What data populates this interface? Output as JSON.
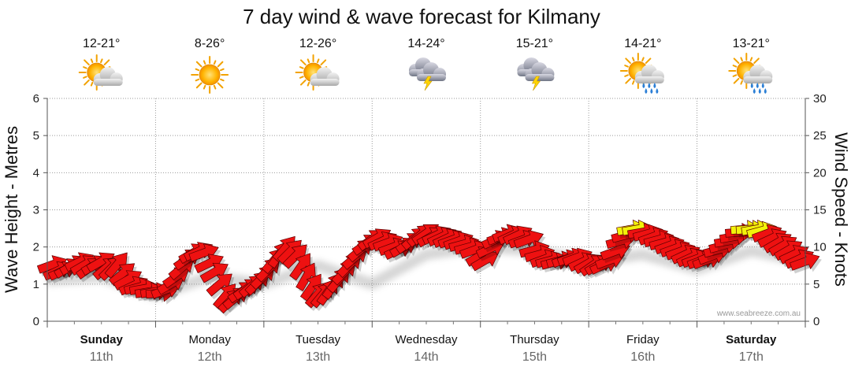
{
  "chart_data": {
    "type": "line",
    "title": "7 day wind & wave forecast for Kilmany",
    "ylabel_left": "Wave Height - Metres",
    "ylabel_right": "Wind Speed - Knots",
    "ylim_left": [
      0,
      6
    ],
    "ylim_right": [
      0,
      30
    ],
    "yticks_left": [
      "0",
      "1",
      "2",
      "3",
      "4",
      "5",
      "6"
    ],
    "yticks_right": [
      "0",
      "5",
      "10",
      "15",
      "20",
      "25",
      "30"
    ],
    "credit": "www.seabreeze.com.au",
    "days": [
      {
        "name": "Sunday",
        "date": "11th",
        "temp": "12-21°",
        "icon": "partly-cloudy-icon",
        "weekend": true
      },
      {
        "name": "Monday",
        "date": "12th",
        "temp": "8-26°",
        "icon": "sunny-icon",
        "weekend": false
      },
      {
        "name": "Tuesday",
        "date": "13th",
        "temp": "12-26°",
        "icon": "partly-cloudy-icon",
        "weekend": false
      },
      {
        "name": "Wednesday",
        "date": "14th",
        "temp": "14-24°",
        "icon": "thunderstorm-icon",
        "weekend": false
      },
      {
        "name": "Thursday",
        "date": "15th",
        "temp": "15-21°",
        "icon": "thunderstorm-icon",
        "weekend": false
      },
      {
        "name": "Friday",
        "date": "16th",
        "temp": "14-21°",
        "icon": "sun-showers-icon",
        "weekend": false
      },
      {
        "name": "Saturday",
        "date": "17th",
        "temp": "13-21°",
        "icon": "sun-showers-icon",
        "weekend": true
      }
    ],
    "wind_series": {
      "name": "Wind speed (knots, arrows show direction)",
      "days_x": [
        0.0,
        0.05,
        0.1,
        0.15,
        0.2,
        0.25,
        0.3,
        0.35,
        0.4,
        0.45,
        0.5,
        0.55,
        0.6,
        0.65,
        0.7,
        0.75,
        0.8,
        0.85,
        0.9,
        0.95,
        1.0,
        1.05,
        1.1,
        1.15,
        1.2,
        1.25,
        1.3,
        1.35,
        1.4,
        1.45,
        1.5,
        1.55,
        1.6,
        1.65,
        1.7,
        1.75,
        1.8,
        1.85,
        1.9,
        1.95,
        2.0,
        2.05,
        2.1,
        2.15,
        2.2,
        2.25,
        2.3,
        2.35,
        2.4,
        2.45,
        2.5,
        2.55,
        2.6,
        2.65,
        2.7,
        2.75,
        2.8,
        2.85,
        2.9,
        2.95,
        3.0,
        3.05,
        3.1,
        3.15,
        3.2,
        3.25,
        3.3,
        3.35,
        3.4,
        3.45,
        3.5,
        3.55,
        3.6,
        3.65,
        3.7,
        3.75,
        3.8,
        3.85,
        3.9,
        3.95,
        4.0,
        4.05,
        4.1,
        4.15,
        4.2,
        4.25,
        4.3,
        4.35,
        4.4,
        4.45,
        4.5,
        4.55,
        4.6,
        4.65,
        4.7,
        4.75,
        4.8,
        4.85,
        4.9,
        4.95,
        5.0,
        5.05,
        5.1,
        5.15,
        5.2,
        5.25,
        5.3,
        5.35,
        5.4,
        5.45,
        5.5,
        5.55,
        5.6,
        5.65,
        5.7,
        5.75,
        5.8,
        5.85,
        5.9,
        5.95,
        6.0,
        6.05,
        6.1,
        6.15,
        6.2,
        6.25,
        6.3,
        6.35,
        6.4,
        6.45,
        6.5,
        6.55,
        6.6,
        6.65,
        6.7,
        6.75,
        6.8,
        6.85,
        6.9,
        6.95
      ],
      "knots": [
        7.6,
        6.8,
        6.8,
        7.2,
        7.6,
        8.0,
        7.6,
        7.2,
        7.6,
        8.0,
        7.2,
        7.2,
        7.6,
        6.4,
        5.6,
        4.8,
        4.6,
        4.4,
        4.0,
        4.0,
        3.8,
        4.2,
        5.0,
        6.0,
        7.2,
        8.4,
        9.2,
        9.4,
        9.2,
        7.8,
        6.6,
        5.0,
        3.4,
        2.8,
        3.2,
        4.0,
        4.4,
        4.8,
        5.2,
        6.0,
        7.0,
        8.2,
        9.0,
        9.8,
        9.4,
        8.8,
        7.4,
        6.0,
        4.6,
        3.6,
        3.6,
        4.0,
        4.8,
        5.6,
        6.6,
        7.6,
        8.6,
        9.6,
        10.4,
        11.0,
        11.2,
        10.8,
        10.6,
        10.0,
        9.6,
        10.0,
        10.6,
        11.2,
        11.6,
        11.8,
        11.4,
        11.6,
        11.4,
        11.2,
        11.0,
        10.8,
        10.4,
        10.0,
        9.6,
        8.8,
        8.2,
        9.8,
        11.0,
        11.4,
        11.8,
        11.6,
        11.6,
        11.0,
        11.0,
        9.6,
        9.0,
        8.4,
        8.2,
        8.0,
        8.2,
        8.4,
        8.6,
        8.6,
        8.0,
        7.8,
        7.6,
        7.6,
        7.6,
        8.2,
        9.4,
        10.8,
        11.6,
        12.4,
        12.4,
        12.0,
        11.8,
        11.4,
        11.0,
        10.6,
        10.2,
        9.8,
        9.4,
        9.0,
        8.6,
        8.4,
        8.2,
        8.2,
        8.8,
        9.6,
        10.2,
        10.8,
        11.4,
        12.0,
        12.4,
        12.4,
        12.4,
        12.2,
        11.8,
        11.2,
        10.6,
        10.2,
        9.6,
        9.0,
        8.4,
        8.0
      ],
      "dir_deg": [
        -20,
        -25,
        -25,
        -30,
        -30,
        -25,
        -30,
        -35,
        -30,
        -30,
        -40,
        -45,
        -50,
        -40,
        -30,
        -25,
        -15,
        -10,
        -10,
        -10,
        -5,
        -20,
        -30,
        -35,
        -40,
        -35,
        -30,
        -25,
        -20,
        -25,
        -30,
        -40,
        -50,
        -45,
        -40,
        -35,
        -35,
        -40,
        -45,
        -45,
        -45,
        -50,
        -55,
        -50,
        -45,
        -45,
        -55,
        -60,
        -55,
        -50,
        -50,
        -55,
        -55,
        -50,
        -45,
        -45,
        -40,
        -40,
        -35,
        -35,
        -30,
        -25,
        -20,
        -20,
        -25,
        -30,
        -35,
        -40,
        -40,
        -35,
        -30,
        -25,
        -25,
        -25,
        -20,
        -20,
        -15,
        -15,
        -20,
        -30,
        -30,
        -25,
        -25,
        -20,
        -20,
        -25,
        -25,
        -20,
        -20,
        -15,
        -15,
        -20,
        -15,
        -15,
        -15,
        -20,
        -20,
        -20,
        -25,
        -30,
        -35,
        -30,
        -25,
        -20,
        -20,
        -15,
        -15,
        -10,
        -10,
        -10,
        -15,
        -20,
        -15,
        -15,
        -20,
        -20,
        -20,
        -25,
        -25,
        -20,
        -20,
        -20,
        -20,
        -15,
        -15,
        -10,
        -10,
        -5,
        -5,
        -5,
        -10,
        -15,
        -20,
        -25,
        -30,
        -30,
        -30,
        -25,
        -25,
        -20
      ],
      "color_thresholds": [
        {
          "max_knots": 12,
          "color": "#ee1111"
        },
        {
          "max_knots": 30,
          "color": "#f2f20a"
        }
      ]
    },
    "wave_series": {
      "name": "Wave height (metres, shadow band)",
      "days_x": [
        0,
        0.5,
        1.0,
        1.5,
        2.0,
        2.5,
        3.0,
        3.5,
        4.0,
        4.5,
        5.0,
        5.5,
        6.0,
        6.5,
        7.0
      ],
      "metres": [
        1.1,
        1.2,
        0.7,
        1.2,
        1.0,
        1.5,
        1.0,
        1.8,
        2.0,
        1.9,
        1.6,
        1.8,
        1.4,
        1.9,
        1.6
      ]
    }
  }
}
